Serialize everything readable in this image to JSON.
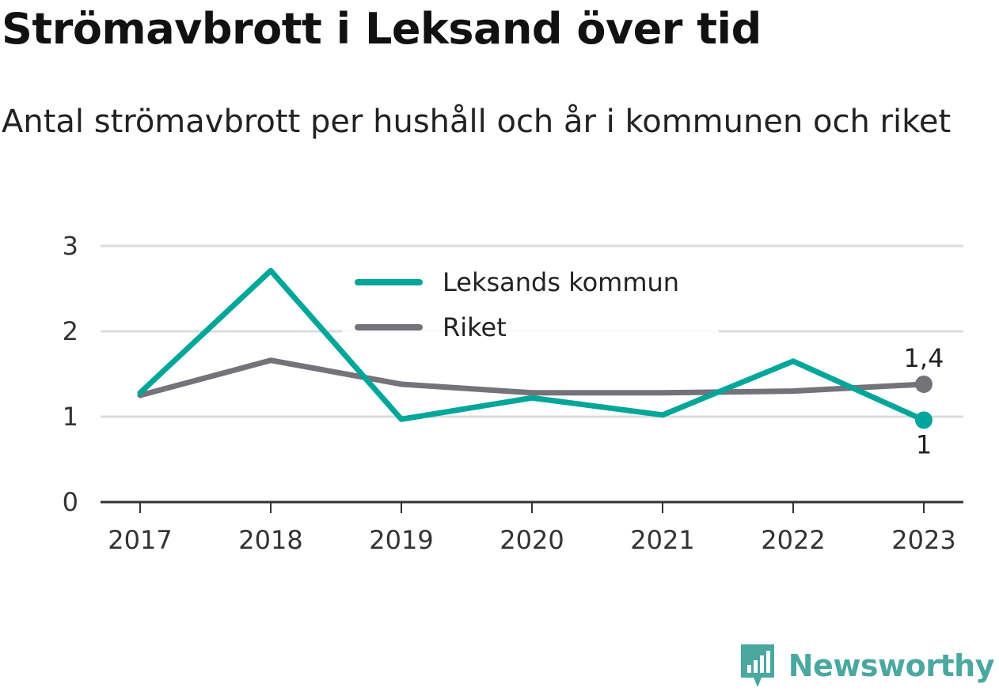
{
  "title": "Strömavbrott i Leksand över tid",
  "subtitle": "Antal strömavbrott per hushåll och år i kommunen och riket",
  "brand": {
    "name": "Newsworthy",
    "color": "#4aa8a0"
  },
  "chart_data": {
    "type": "line",
    "title": "Strömavbrott i Leksand över tid",
    "subtitle": "Antal strömavbrott per hushåll och år i kommunen och riket",
    "x": [
      "2017",
      "2018",
      "2019",
      "2020",
      "2021",
      "2022",
      "2023"
    ],
    "ylim": [
      0,
      3
    ],
    "yticks": [
      0,
      1,
      2,
      3
    ],
    "grid": true,
    "legend_position": "top-center",
    "series": [
      {
        "name": "Leksands kommun",
        "color": "#00a69a",
        "values": [
          1.28,
          2.71,
          0.97,
          1.22,
          1.02,
          1.65,
          0.96
        ],
        "end_label": "1"
      },
      {
        "name": "Riket",
        "color": "#74737a",
        "values": [
          1.25,
          1.66,
          1.38,
          1.28,
          1.28,
          1.3,
          1.38
        ],
        "end_label": "1,4"
      }
    ]
  }
}
